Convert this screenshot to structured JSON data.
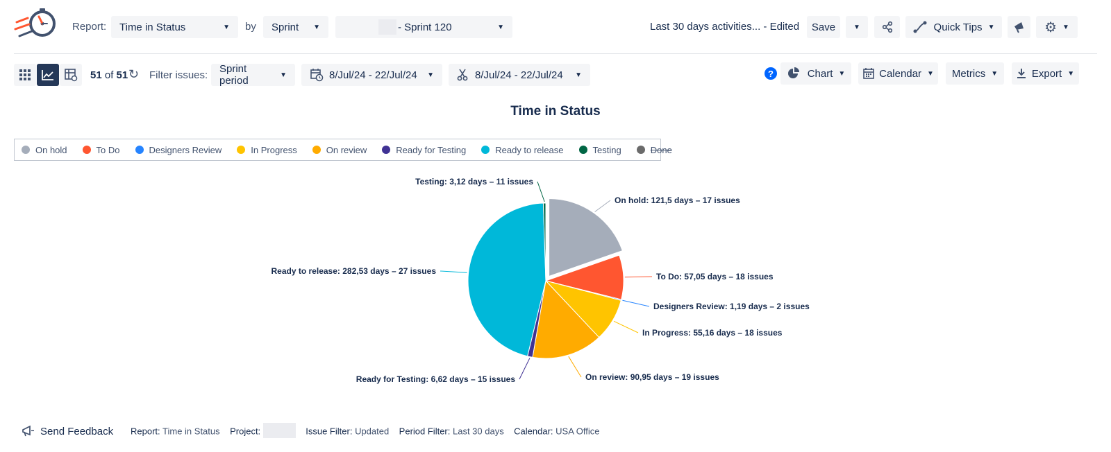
{
  "header": {
    "report_label": "Report:",
    "report_value": "Time in Status",
    "by_label": "by",
    "by_value": "Sprint",
    "sprint_value": "- Sprint 120",
    "view_name": "Last 30 days activities... - Edited",
    "save_label": "Save",
    "quick_tips_label": "Quick Tips"
  },
  "toolbar": {
    "count_current": "51",
    "count_of": "of",
    "count_total": "51",
    "filter_label": "Filter issues:",
    "filter_value": "Sprint period",
    "date_range_1": "8/Jul/24 - 22/Jul/24",
    "date_range_2": "8/Jul/24 - 22/Jul/24",
    "help": "?",
    "chart_label": "Chart",
    "calendar_label": "Calendar",
    "metrics_label": "Metrics",
    "export_label": "Export"
  },
  "chart_data": {
    "type": "pie",
    "title": "Time in Status",
    "legend_position": "top-left",
    "slices": [
      {
        "name": "On hold",
        "label": "On hold: 121,5 days – 17 issues",
        "days": 121.5,
        "issues": 17,
        "color": "#a5adba",
        "exploded": true
      },
      {
        "name": "To Do",
        "label": "To Do: 57,05 days – 18 issues",
        "days": 57.05,
        "issues": 18,
        "color": "#ff5630"
      },
      {
        "name": "Designers Review",
        "label": "Designers Review: 1,19 days – 2 issues",
        "days": 1.19,
        "issues": 2,
        "color": "#2684ff"
      },
      {
        "name": "In Progress",
        "label": "In Progress: 55,16 days – 18 issues",
        "days": 55.16,
        "issues": 18,
        "color": "#ffc400"
      },
      {
        "name": "On review",
        "label": "On review: 90,95 days – 19 issues",
        "days": 90.95,
        "issues": 19,
        "color": "#ffab00"
      },
      {
        "name": "Ready for Testing",
        "label": "Ready for Testing: 6,62 days – 15 issues",
        "days": 6.62,
        "issues": 15,
        "color": "#403294"
      },
      {
        "name": "Ready to release",
        "label": "Ready to release: 282,53 days – 27 issues",
        "days": 282.53,
        "issues": 27,
        "color": "#00b8d9"
      },
      {
        "name": "Testing",
        "label": "Testing: 3,12 days – 11 issues",
        "days": 3.12,
        "issues": 11,
        "color": "#006644"
      }
    ],
    "legend": [
      {
        "name": "On hold",
        "color": "#a5adba",
        "enabled": true
      },
      {
        "name": "To Do",
        "color": "#ff5630",
        "enabled": true
      },
      {
        "name": "Designers Review",
        "color": "#2684ff",
        "enabled": true
      },
      {
        "name": "In Progress",
        "color": "#ffc400",
        "enabled": true
      },
      {
        "name": "On review",
        "color": "#ffab00",
        "enabled": true
      },
      {
        "name": "Ready for Testing",
        "color": "#403294",
        "enabled": true
      },
      {
        "name": "Ready to release",
        "color": "#00b8d9",
        "enabled": true
      },
      {
        "name": "Testing",
        "color": "#006644",
        "enabled": true
      },
      {
        "name": "Done",
        "color": "#6b6b6b",
        "enabled": false
      }
    ]
  },
  "footer": {
    "feedback_label": "Send Feedback",
    "report_key": "Report:",
    "report_val": "Time in Status",
    "project_key": "Project:",
    "issue_filter_key": "Issue Filter:",
    "issue_filter_val": "Updated",
    "period_filter_key": "Period Filter:",
    "period_filter_val": "Last 30 days",
    "calendar_key": "Calendar:",
    "calendar_val": "USA Office"
  },
  "icons": {
    "logo": "stopwatch-logo-icon",
    "share": "share-icon",
    "quick_tips": "path-icon",
    "announce": "megaphone-icon",
    "settings": "gear-icon",
    "grid": "grid-icon",
    "chart_view": "chart-line-icon",
    "table_view": "table-icon",
    "refresh": "refresh-icon",
    "calendar": "calendar-icon",
    "scissors": "scissors-icon",
    "pie": "pie-icon",
    "export": "download-icon"
  },
  "colors": {
    "accent": "#253858",
    "help": "#0065ff"
  }
}
